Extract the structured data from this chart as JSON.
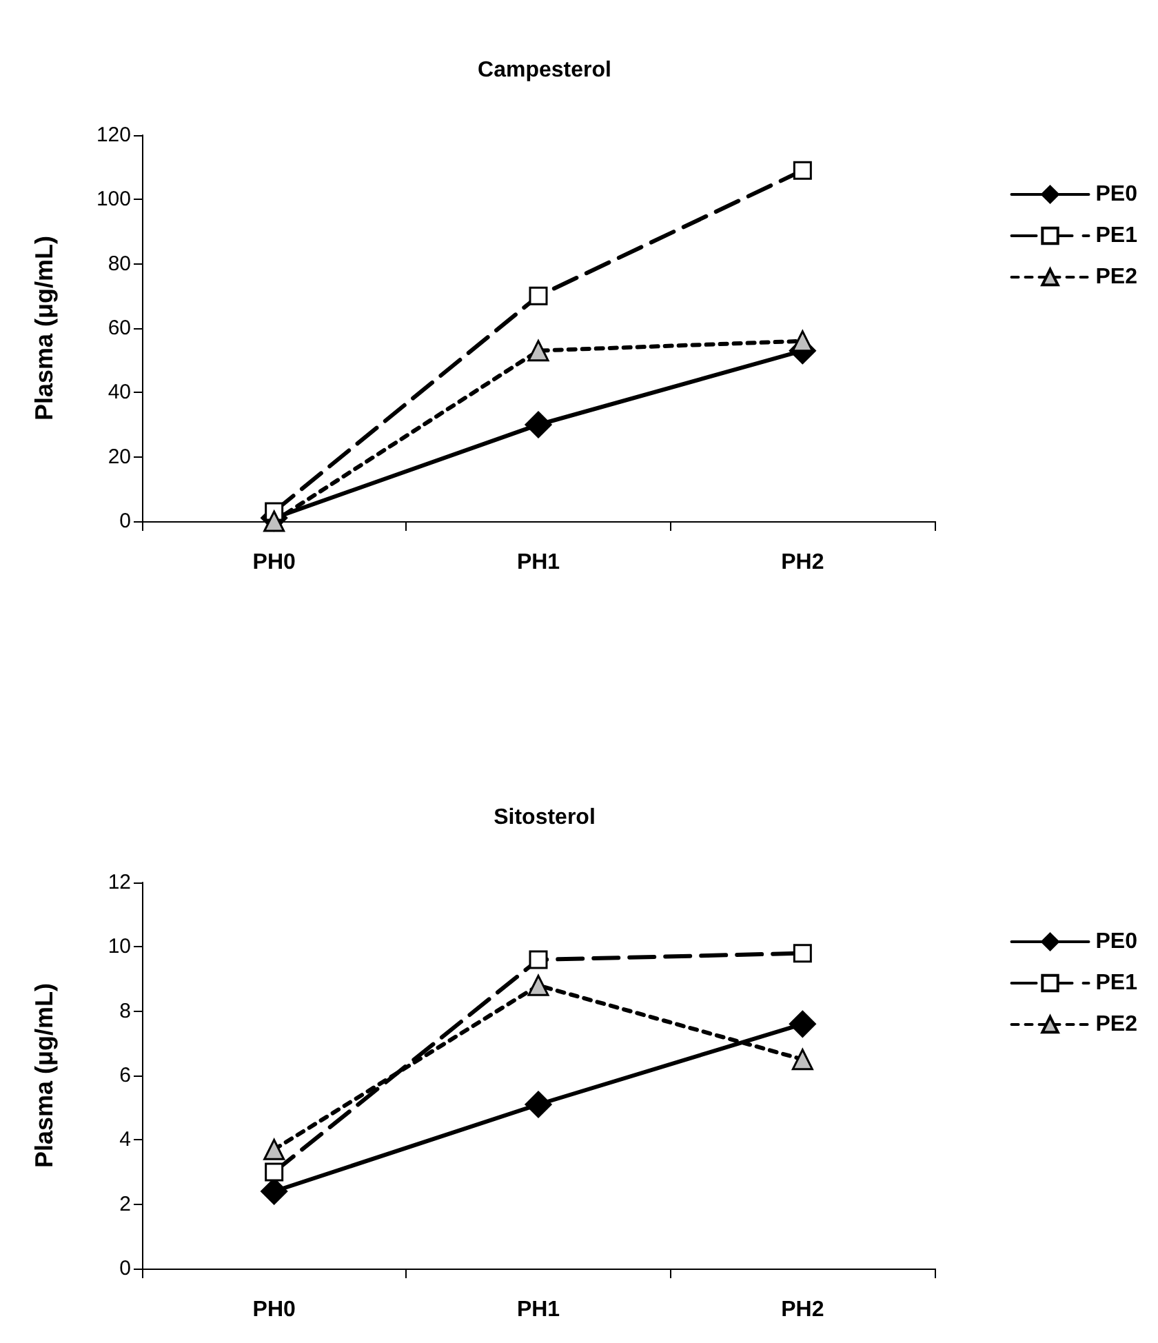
{
  "chart_data": [
    {
      "type": "line",
      "title": "Campesterol",
      "ylabel": "Plasma (μg/mL)",
      "categories": [
        "PH0",
        "PH1",
        "PH2"
      ],
      "ylim": [
        0,
        120
      ],
      "yticks": [
        0,
        20,
        40,
        60,
        80,
        100,
        120
      ],
      "grid": false,
      "legend": "right",
      "series": [
        {
          "name": "PE0",
          "color": "#000000",
          "marker": "diamond",
          "line_style": "solid",
          "values": [
            1,
            30,
            53
          ]
        },
        {
          "name": "PE1",
          "color": "#ffffff",
          "marker": "square",
          "line_style": "dashed",
          "values": [
            3,
            70,
            109
          ]
        },
        {
          "name": "PE2",
          "color": "#c0c0c0",
          "marker": "triangle",
          "line_style": "dotted",
          "values": [
            0,
            53,
            56
          ]
        }
      ]
    },
    {
      "type": "line",
      "title": "Sitosterol",
      "ylabel": "Plasma (μg/mL)",
      "categories": [
        "PH0",
        "PH1",
        "PH2"
      ],
      "ylim": [
        0,
        12
      ],
      "yticks": [
        0,
        2,
        4,
        6,
        8,
        10,
        12
      ],
      "grid": false,
      "legend": "right",
      "series": [
        {
          "name": "PE0",
          "color": "#000000",
          "marker": "diamond",
          "line_style": "solid",
          "values": [
            2.4,
            5.1,
            7.6
          ]
        },
        {
          "name": "PE1",
          "color": "#ffffff",
          "marker": "square",
          "line_style": "dashed",
          "values": [
            3.0,
            9.6,
            9.8
          ]
        },
        {
          "name": "PE2",
          "color": "#c0c0c0",
          "marker": "triangle",
          "line_style": "dotted",
          "values": [
            3.7,
            8.8,
            6.5
          ]
        }
      ]
    }
  ]
}
